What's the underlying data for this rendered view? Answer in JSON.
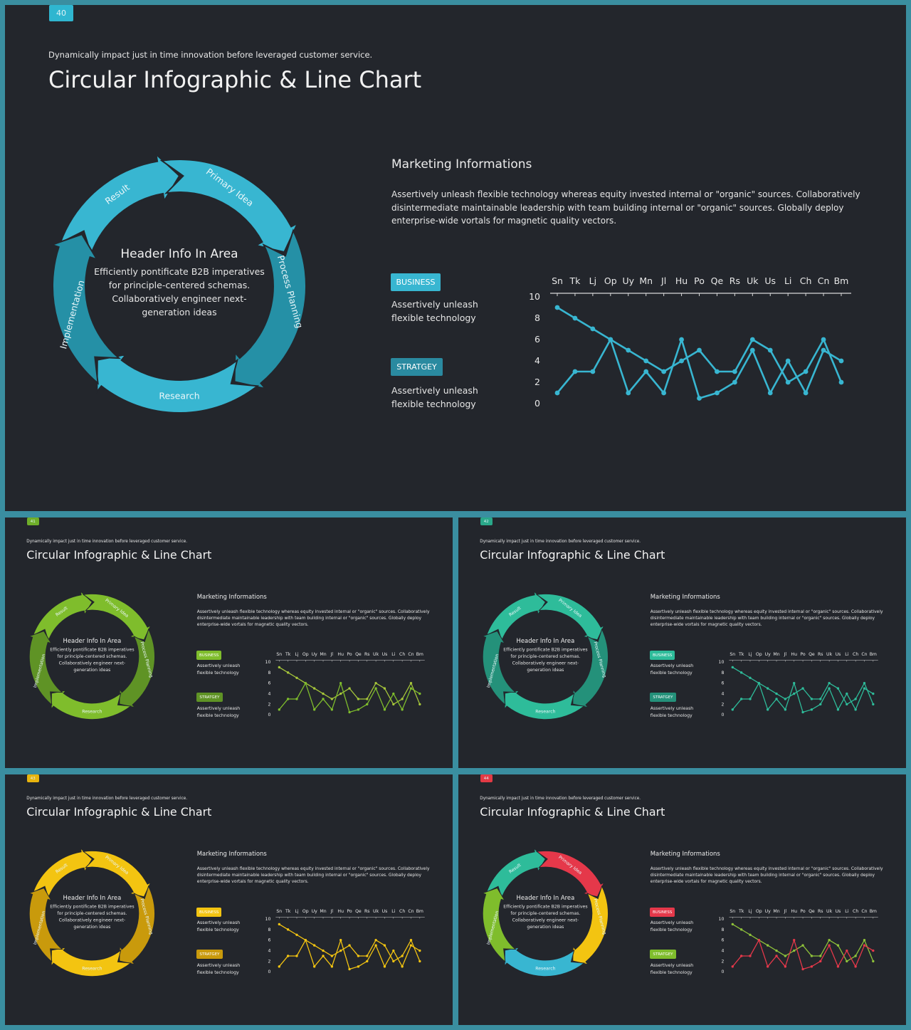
{
  "slides": [
    {
      "page_number": "40",
      "kicker": "Dynamically impact just in time innovation  before leveraged customer service.",
      "title": "Circular Infographic & Line Chart",
      "colors": {
        "badge": "#2fb6d0",
        "arrows": [
          "#38b6d1",
          "#38b6d1",
          "#2590a6",
          "#38b6d1",
          "#2590a6"
        ],
        "tag1": "#38b6d1",
        "tag2": "#2a8aa0",
        "line1": "#38b6d1",
        "line2": "#38b6d1"
      }
    },
    {
      "page_number": "41",
      "kicker": "Dynamically impact just in time innovation  before leveraged customer service.",
      "title": "Circular Infographic & Line Chart",
      "colors": {
        "badge": "#6fae2a",
        "arrows": [
          "#7fbd2c",
          "#7fbd2c",
          "#5f9325",
          "#7fbd2c",
          "#5f9325"
        ],
        "tag1": "#7fbd2c",
        "tag2": "#5f9325",
        "line1": "#a6c63a",
        "line2": "#7fbd2c"
      }
    },
    {
      "page_number": "42",
      "kicker": "Dynamically impact just in time innovation  before leveraged customer service.",
      "title": "Circular Infographic & Line Chart",
      "colors": {
        "badge": "#2aa88a",
        "arrows": [
          "#2ebc9a",
          "#2ebc9a",
          "#24917a",
          "#2ebc9a",
          "#24917a"
        ],
        "tag1": "#2ebc9a",
        "tag2": "#24917a",
        "line1": "#2ebc9a",
        "line2": "#2ebc9a"
      }
    },
    {
      "page_number": "43",
      "kicker": "Dynamically impact just in time innovation  before leveraged customer service.",
      "title": "Circular Infographic & Line Chart",
      "colors": {
        "badge": "#e8b40e",
        "arrows": [
          "#f3c411",
          "#f3c411",
          "#c99a0c",
          "#f3c411",
          "#c99a0c"
        ],
        "tag1": "#f3c411",
        "tag2": "#c99a0c",
        "line1": "#f3c411",
        "line2": "#f3c411"
      }
    },
    {
      "page_number": "44",
      "kicker": "Dynamically impact just in time innovation  before leveraged customer service.",
      "title": "Circular Infographic & Line Chart",
      "colors": {
        "badge": "#e23a45",
        "arrows": [
          "#2ebc9a",
          "#e5384a",
          "#f3c411",
          "#38b6d1",
          "#7fbd2c"
        ],
        "tag1": "#e5384a",
        "tag2": "#7fbd2c",
        "line1": "#8fc23a",
        "line2": "#e5384a"
      }
    }
  ],
  "circle": {
    "segments": [
      "Result",
      "Primary Idea",
      "Process Planning",
      "Research",
      "Implementation"
    ],
    "center_title": "Header Info In Area",
    "center_lines": [
      "Efficiently pontificate B2B imperatives",
      "for principle-centered schemas.",
      "Collaboratively engineer next-",
      "generation ideas"
    ]
  },
  "info": {
    "title": "Marketing  Informations",
    "body": "Assertively unleash flexible technology whereas equity invested internal or \"organic\" sources. Collaboratively disintermediate maintainable leadership with team building internal or \"organic\" sources. Globally deploy enterprise-wide vortals for magnetic quality vectors.",
    "tags": [
      {
        "label": "BUSINESS",
        "desc": "Assertively unleash flexible technology"
      },
      {
        "label": "STRATGEY",
        "desc": "Assertively unleash flexible technology"
      }
    ]
  },
  "chart_data": {
    "type": "line",
    "categories": [
      "Sn",
      "Tk",
      "Lj",
      "Op",
      "Uy",
      "Mn",
      "Jl",
      "Hu",
      "Po",
      "Qe",
      "Rs",
      "Uk",
      "Us",
      "Li",
      "Ch",
      "Cn",
      "Bm"
    ],
    "ylim": [
      0,
      10
    ],
    "yticks": [
      0,
      2,
      4,
      6,
      8,
      10
    ],
    "x_axis_position": "top",
    "grid": false,
    "series": [
      {
        "values": [
          9,
          8,
          7,
          6,
          5,
          4,
          3,
          4,
          5,
          3,
          3,
          6,
          5,
          2,
          3,
          6,
          2
        ]
      },
      {
        "values": [
          1,
          3,
          3,
          6,
          1,
          3,
          1,
          6,
          0.5,
          1,
          2,
          5,
          1,
          4,
          1,
          5,
          4
        ]
      }
    ]
  }
}
